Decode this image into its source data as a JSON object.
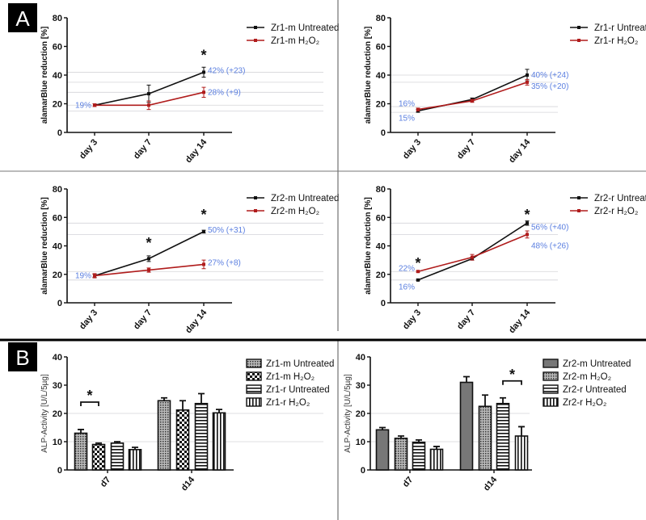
{
  "panel_labels": [
    "A",
    "B"
  ],
  "chart_data": [
    {
      "id": "A1",
      "type": "line",
      "panel": "A",
      "ylabel": "alamarBlue reduction [%]",
      "ylim": [
        0,
        80
      ],
      "yticks": [
        0,
        20,
        40,
        60,
        80
      ],
      "categories": [
        "day 3",
        "day 7",
        "day 14"
      ],
      "series": [
        {
          "name": "Zr1-m Untreated",
          "color": "#111111",
          "values": [
            19,
            27,
            42
          ],
          "errors": [
            1,
            6,
            3.5
          ]
        },
        {
          "name": "Zr1-m H₂O₂",
          "color": "#b01c1c",
          "values": [
            19,
            19,
            28
          ],
          "errors": [
            1,
            3,
            3.5
          ]
        }
      ],
      "reference_lines": [
        42,
        35,
        28,
        19,
        15
      ],
      "annotations": [
        {
          "text": "19%",
          "cat": 0,
          "y": 19,
          "side": "left"
        },
        {
          "text": "42% (+23)",
          "cat": 2,
          "y": 43,
          "side": "right"
        },
        {
          "text": "28% (+9)",
          "cat": 2,
          "y": 28,
          "side": "right"
        }
      ],
      "significance": [
        {
          "text": "*",
          "cat": 2,
          "y": 55
        }
      ]
    },
    {
      "id": "A2",
      "type": "line",
      "panel": "A",
      "ylabel": "alamarBlue reduction [%]",
      "ylim": [
        0,
        80
      ],
      "yticks": [
        0,
        20,
        40,
        60,
        80
      ],
      "categories": [
        "day 3",
        "day 7",
        "day 14"
      ],
      "series": [
        {
          "name": "Zr1-r Untreated",
          "color": "#111111",
          "values": [
            15,
            23,
            40
          ],
          "errors": [
            1,
            1,
            4
          ]
        },
        {
          "name": "Zr1-r H₂O₂",
          "color": "#b01c1c",
          "values": [
            16,
            22,
            35
          ],
          "errors": [
            1,
            1,
            2
          ]
        }
      ],
      "reference_lines": [
        40,
        35,
        18,
        14
      ],
      "annotations": [
        {
          "text": "16%",
          "cat": 0,
          "y": 20,
          "side": "left"
        },
        {
          "text": "15%",
          "cat": 0,
          "y": 10,
          "side": "left"
        },
        {
          "text": "40% (+24)",
          "cat": 2,
          "y": 40,
          "side": "right"
        },
        {
          "text": "35% (+20)",
          "cat": 2,
          "y": 32,
          "side": "right"
        }
      ],
      "significance": []
    },
    {
      "id": "A3",
      "type": "line",
      "panel": "A",
      "ylabel": "alamarBlue reduction [%]",
      "ylim": [
        0,
        80
      ],
      "yticks": [
        0,
        20,
        40,
        60,
        80
      ],
      "categories": [
        "day 3",
        "day 7",
        "day 14"
      ],
      "series": [
        {
          "name": "Zr2-m Untreated",
          "color": "#111111",
          "values": [
            19,
            31,
            50
          ],
          "errors": [
            1,
            2,
            1
          ]
        },
        {
          "name": "Zr2-m H₂O₂",
          "color": "#b01c1c",
          "values": [
            19,
            23,
            27
          ],
          "errors": [
            1.5,
            1.5,
            3
          ]
        }
      ],
      "reference_lines": [
        56,
        48,
        22,
        16
      ],
      "annotations": [
        {
          "text": "19%",
          "cat": 0,
          "y": 19,
          "side": "left"
        },
        {
          "text": "50% (+31)",
          "cat": 2,
          "y": 51,
          "side": "right"
        },
        {
          "text": "27% (+8)",
          "cat": 2,
          "y": 28,
          "side": "right"
        }
      ],
      "significance": [
        {
          "text": "*",
          "cat": 1,
          "y": 43
        },
        {
          "text": "*",
          "cat": 2,
          "y": 63
        }
      ]
    },
    {
      "id": "A4",
      "type": "line",
      "panel": "A",
      "ylabel": "alamarBlue reduction [%]",
      "ylim": [
        0,
        80
      ],
      "yticks": [
        0,
        20,
        40,
        60,
        80
      ],
      "categories": [
        "day 3",
        "day 7",
        "day 14"
      ],
      "series": [
        {
          "name": "Zr2-r Untreated",
          "color": "#111111",
          "values": [
            16,
            31,
            56
          ],
          "errors": [
            0.5,
            1,
            1.5
          ]
        },
        {
          "name": "Zr2-r H₂O₂",
          "color": "#b01c1c",
          "values": [
            22,
            32,
            48
          ],
          "errors": [
            0.5,
            2,
            2.5
          ]
        }
      ],
      "reference_lines": [
        56,
        48,
        22,
        16
      ],
      "annotations": [
        {
          "text": "22%",
          "cat": 0,
          "y": 24,
          "side": "left"
        },
        {
          "text": "16%",
          "cat": 0,
          "y": 11,
          "side": "left"
        },
        {
          "text": "56% (+40)",
          "cat": 2,
          "y": 53,
          "side": "right"
        },
        {
          "text": "48% (+26)",
          "cat": 2,
          "y": 40,
          "side": "right"
        }
      ],
      "significance": [
        {
          "text": "*",
          "cat": 0,
          "y": 29
        },
        {
          "text": "*",
          "cat": 2,
          "y": 63
        }
      ]
    },
    {
      "id": "B1",
      "type": "bar",
      "panel": "B",
      "ylabel": "ALP-Activity [U/L/5µg]",
      "ylim": [
        0,
        40
      ],
      "yticks": [
        0,
        10,
        20,
        30,
        40
      ],
      "categories": [
        "d7",
        "d14"
      ],
      "series": [
        {
          "name": "Zr1-m Untreated",
          "pattern": "dots",
          "values": [
            13,
            24.5
          ],
          "errors": [
            1.3,
            1
          ]
        },
        {
          "name": "Zr1-m H₂O₂",
          "pattern": "checker",
          "values": [
            9,
            21.2
          ],
          "errors": [
            0.5,
            3.3
          ]
        },
        {
          "name": "Zr1-r Untreated",
          "pattern": "hlines",
          "values": [
            9.5,
            23.5
          ],
          "errors": [
            0.5,
            3.5
          ]
        },
        {
          "name": "Zr1-r H₂O₂",
          "pattern": "vlines",
          "values": [
            7.2,
            20.2
          ],
          "errors": [
            0.8,
            1.2
          ]
        }
      ],
      "reference_lines": [
        20,
        10
      ],
      "significance": [
        {
          "text": "*",
          "cat": 0,
          "from": 0,
          "to": 1,
          "y": 24
        }
      ]
    },
    {
      "id": "B2",
      "type": "bar",
      "panel": "B",
      "ylabel": "ALP-Activity [U/L/5µg]",
      "ylim": [
        0,
        40
      ],
      "yticks": [
        0,
        10,
        20,
        30,
        40
      ],
      "categories": [
        "d7",
        "d14"
      ],
      "series": [
        {
          "name": "Zr2-m Untreated",
          "pattern": "solid",
          "values": [
            14.2,
            31
          ],
          "errors": [
            0.8,
            2
          ]
        },
        {
          "name": "Zr2-m H₂O₂",
          "pattern": "dots",
          "values": [
            11.2,
            22.5
          ],
          "errors": [
            0.8,
            4
          ]
        },
        {
          "name": "Zr2-r Untreated",
          "pattern": "hlines",
          "values": [
            9.8,
            23.5
          ],
          "errors": [
            0.8,
            2
          ]
        },
        {
          "name": "Zr2-r H₂O₂",
          "pattern": "vlines",
          "values": [
            7.3,
            12
          ],
          "errors": [
            1,
            3.3
          ]
        }
      ],
      "reference_lines": [
        20,
        10
      ],
      "significance": [
        {
          "text": "*",
          "cat": 1,
          "from": 2,
          "to": 3,
          "y": 31.5
        }
      ]
    }
  ]
}
